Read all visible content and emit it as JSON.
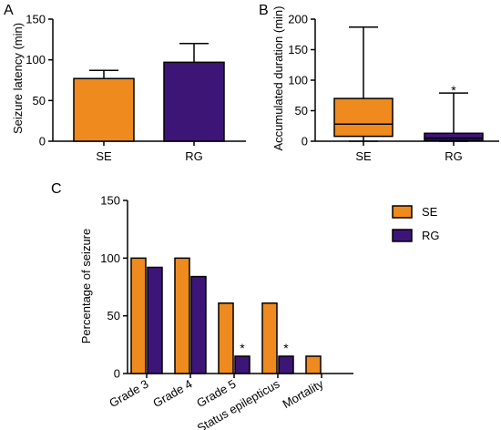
{
  "colors": {
    "SE": "#EE8A1E",
    "RG": "#3D1577",
    "axis": "#000000"
  },
  "chart_data": [
    {
      "panel": "A",
      "type": "bar",
      "ylabel": "Seizure latency (min)",
      "categories": [
        "SE",
        "RG"
      ],
      "values": [
        77,
        97
      ],
      "errors_upper": [
        87,
        120
      ],
      "ylim": [
        0,
        150
      ],
      "yticks": [
        0,
        50,
        100,
        150
      ],
      "grid": false
    },
    {
      "panel": "B",
      "type": "box",
      "ylabel": "Accumulated duration (min)",
      "categories": [
        "SE",
        "RG"
      ],
      "boxes": [
        {
          "min": 0,
          "q1": 8,
          "median": 28,
          "q3": 70,
          "max": 187
        },
        {
          "min": 0,
          "q1": 1,
          "median": 5,
          "q3": 13,
          "max": 79
        }
      ],
      "annotations": [
        {
          "category": "RG",
          "text": "*",
          "y": 88
        }
      ],
      "ylim": [
        0,
        200
      ],
      "yticks": [
        0,
        50,
        100,
        150,
        200
      ],
      "grid": false
    },
    {
      "panel": "C",
      "type": "bar",
      "ylabel": "Percentage of seizure",
      "categories": [
        "Grade 3",
        "Grade 4",
        "Grade 5",
        "Status epilepticus",
        "Mortality"
      ],
      "series": [
        {
          "name": "SE",
          "values": [
            100,
            100,
            61,
            61,
            15
          ]
        },
        {
          "name": "RG",
          "values": [
            92,
            84,
            15,
            15,
            0
          ]
        }
      ],
      "annotations": [
        {
          "category": "Grade 5",
          "series": "RG",
          "text": "*"
        },
        {
          "category": "Status epilepticus",
          "series": "RG",
          "text": "*"
        }
      ],
      "ylim": [
        0,
        150
      ],
      "yticks": [
        0,
        50,
        100,
        150
      ],
      "legend": "top-right",
      "grid": false
    }
  ]
}
